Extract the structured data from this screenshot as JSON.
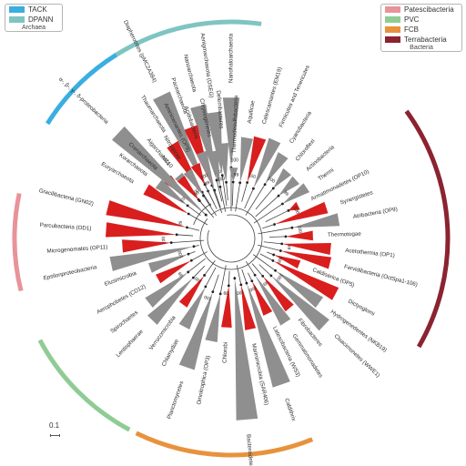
{
  "legend_archaea": {
    "items": [
      {
        "label": "TACK",
        "color": "#3aaee0"
      },
      {
        "label": "DPANN",
        "color": "#7ec5c2"
      }
    ],
    "group": "Archaea"
  },
  "legend_bacteria": {
    "items": [
      {
        "label": "Patescibacteria",
        "color": "#e8939a"
      },
      {
        "label": "PVC",
        "color": "#8fcc94"
      },
      {
        "label": "FCB",
        "color": "#e8923e"
      },
      {
        "label": "Terrabacteria",
        "color": "#8b2330"
      }
    ],
    "group": "Bacteria"
  },
  "scale_bar": "0.1",
  "support_value": "100",
  "support_value_alt": "99",
  "colors": {
    "red": "#d91e1e",
    "gray": "#8f8f8f",
    "line": "#444444"
  },
  "taxa": [
    {
      "label": "Nanohaloarchaeota",
      "color": "gray"
    },
    {
      "label": "Aenigmarchaeota (DSEG)",
      "color": "gray"
    },
    {
      "label": "Nanoarchaeota",
      "color": "gray"
    },
    {
      "label": "Pacearchaeota",
      "color": "red"
    },
    {
      "label": "Diapherotrites (pMC2A384)",
      "color": "gray"
    },
    {
      "label": "Thaumarchaeota",
      "color": "red"
    },
    {
      "label": "Aigarchaeota",
      "color": "gray"
    },
    {
      "label": "Crenarchaeota",
      "color": "red"
    },
    {
      "label": "Korarchaeota",
      "color": "gray"
    },
    {
      "label": "Euryarchaeota",
      "color": "red"
    },
    {
      "label": "Gracilibacteria (GN02)",
      "color": "red"
    },
    {
      "label": "Parcubacteria (OD1)",
      "color": "red"
    },
    {
      "label": "Microgenomates (OP11)",
      "color": "red"
    },
    {
      "label": "Epsilonproteobacteria",
      "color": "gray"
    },
    {
      "label": "Elusimicrobia",
      "color": "gray"
    },
    {
      "label": "Aerophobetes (CD12)",
      "color": "red"
    },
    {
      "label": "Spirochaetes",
      "color": "gray"
    },
    {
      "label": "Lentisphaerae",
      "color": "gray"
    },
    {
      "label": "Verrucomicrobia",
      "color": "red"
    },
    {
      "label": "Chlamydiae",
      "color": "gray"
    },
    {
      "label": "Planctomycetes",
      "color": "gray"
    },
    {
      "label": "Omnitrophica (OP3)",
      "color": "gray"
    },
    {
      "label": "Chlorobi",
      "color": "red"
    },
    {
      "label": "Bacteroidetes",
      "color": "gray"
    },
    {
      "label": "Marinimicrobia (SAR406)",
      "color": "red"
    },
    {
      "label": "Caldithrix",
      "color": "gray"
    },
    {
      "label": "Latescibacteria (WS3)",
      "color": "red"
    },
    {
      "label": "Gemmatimonadetes",
      "color": "gray"
    },
    {
      "label": "Fibrobacteres",
      "color": "red"
    },
    {
      "label": "Cloacimonetes (WWE1)",
      "color": "gray"
    },
    {
      "label": "Hydrogenedentes (NKB19)",
      "color": "gray"
    },
    {
      "label": "Dictyoglomi",
      "color": "red"
    },
    {
      "label": "Caldiserica (OP5)",
      "color": "red"
    },
    {
      "label": "Fervidibacteria (OctSpa1-106)",
      "color": "red"
    },
    {
      "label": "Acetothermia (OP1)",
      "color": "red"
    },
    {
      "label": "Thermotogae",
      "color": "red"
    },
    {
      "label": "Atribacteria (OP9)",
      "color": "gray"
    },
    {
      "label": "Synergistetes",
      "color": "red"
    },
    {
      "label": "Armatimonadetes (OP10)",
      "color": "red"
    },
    {
      "label": "Thermi",
      "color": "gray"
    },
    {
      "label": "Actinobacteria",
      "color": "gray"
    },
    {
      "label": "Chloroflexi",
      "color": "gray"
    },
    {
      "label": "Cyanobacteria",
      "color": "gray"
    },
    {
      "label": "Firmicutes and Tenericutes",
      "color": "gray"
    },
    {
      "label": "Calescamantes (EM19)",
      "color": "red"
    },
    {
      "label": "Aquificae",
      "color": "gray"
    },
    {
      "label": "Thermodesulfobacteria",
      "color": "gray"
    },
    {
      "label": "Deferribacteres",
      "color": "gray"
    },
    {
      "label": "Chrysiogenetes",
      "color": "gray"
    },
    {
      "label": "Acidobacteria",
      "color": "gray"
    },
    {
      "label": "Aminicenantes (OP8)",
      "color": "red"
    },
    {
      "label": "Nitrospirae",
      "color": "gray"
    },
    {
      "label": "NC10",
      "color": "red"
    },
    {
      "label": "α-, β-, γ-, δ-proteobacteria",
      "color": "gray"
    }
  ]
}
